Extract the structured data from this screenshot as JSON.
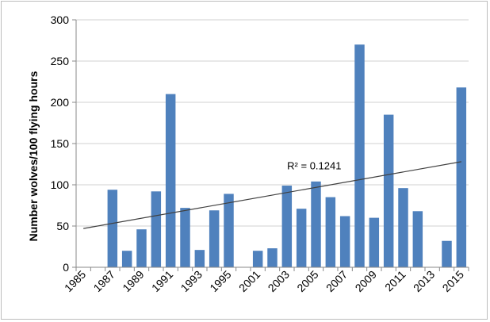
{
  "chart_data": {
    "type": "bar",
    "ylabel": "Number wolves/100 flying hours",
    "xlabel": "",
    "title": "",
    "ylim": [
      0,
      300
    ],
    "yticks": [
      0,
      50,
      100,
      150,
      200,
      250,
      300
    ],
    "grid": true,
    "categories": [
      "1985",
      "1986",
      "1987",
      "1988",
      "1989",
      "1990",
      "1991",
      "1992",
      "1993",
      "1994",
      "1995",
      "1996",
      "2001",
      "2002",
      "2003",
      "2004",
      "2005",
      "2006",
      "2007",
      "2008",
      "2009",
      "2010",
      "2011",
      "2012",
      "2013",
      "2014",
      "2015"
    ],
    "x_tick_labels": [
      "1985",
      "1987",
      "1989",
      "1991",
      "1993",
      "1995",
      "2001",
      "2003",
      "2005",
      "2007",
      "2009",
      "2011",
      "2013",
      "2015"
    ],
    "values": [
      null,
      null,
      94,
      20,
      46,
      92,
      210,
      72,
      21,
      69,
      89,
      null,
      20,
      23,
      99,
      71,
      104,
      85,
      62,
      270,
      60,
      185,
      96,
      68,
      null,
      32,
      218
    ],
    "bar_color": "#4f81bd",
    "trendline": {
      "type": "linear",
      "start": 47,
      "end": 128,
      "label": "R² = 0.1241",
      "color": "#404040"
    }
  }
}
